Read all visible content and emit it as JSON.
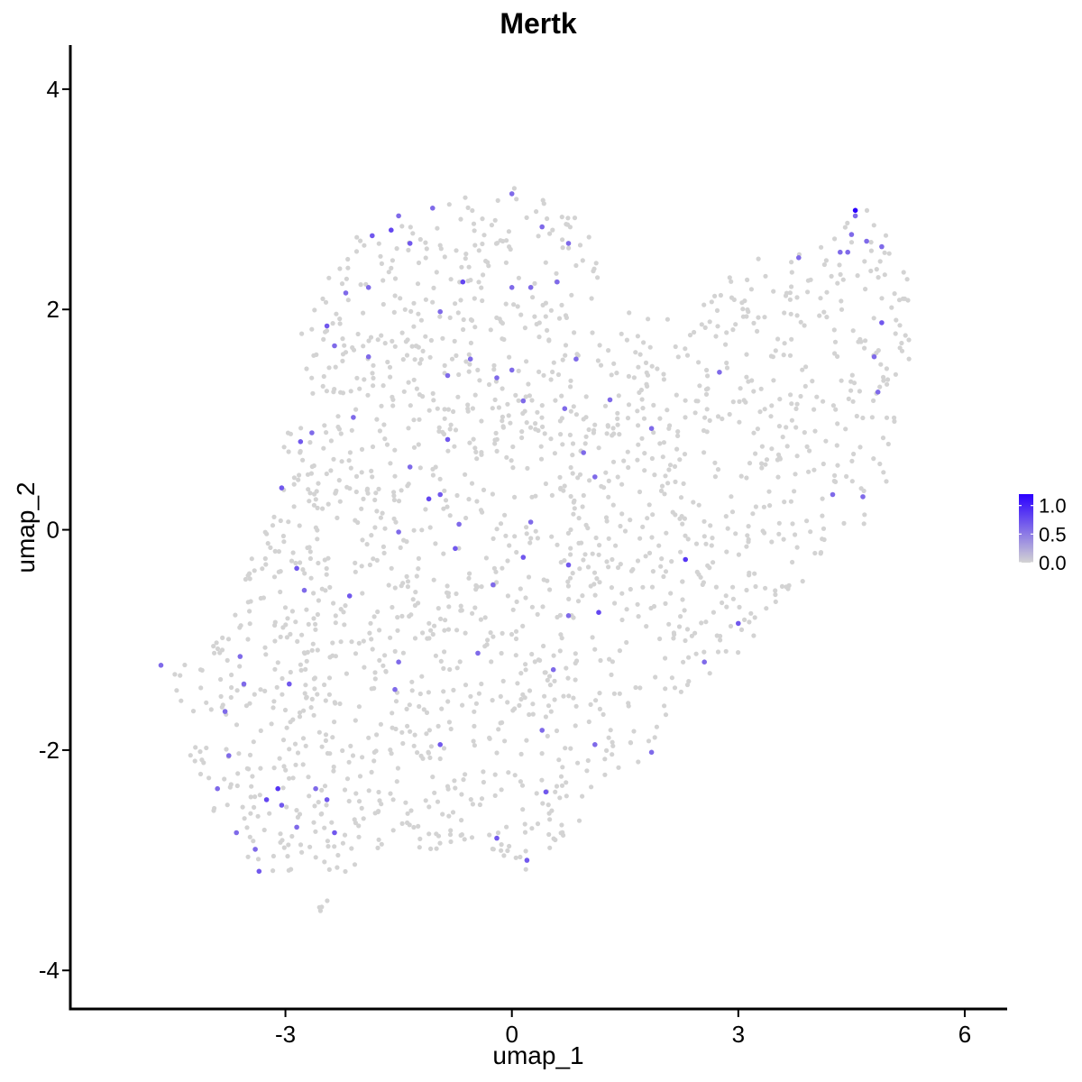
{
  "chart_data": {
    "type": "scatter",
    "title": "Mertk",
    "xlabel": "umap_1",
    "ylabel": "umap_2",
    "xlim": [
      -5.85,
      6.55
    ],
    "ylim": [
      -4.35,
      4.4
    ],
    "x_ticks": [
      -3,
      0,
      3,
      6
    ],
    "x_tick_labels": [
      "-3",
      "0",
      "3",
      "6"
    ],
    "y_ticks": [
      -4,
      -2,
      0,
      2,
      4
    ],
    "y_tick_labels": [
      "-4",
      "-2",
      "0",
      "2",
      "4"
    ],
    "grid": false,
    "legend": {
      "placement": "right",
      "type": "colorbar",
      "min": 0.0,
      "max": 1.2,
      "ticks": [
        0.0,
        0.5,
        1.0
      ],
      "tick_labels": [
        "0.0",
        "0.5",
        "1.0"
      ],
      "low_color": "#d3d3d3",
      "high_color": "#2b00ff"
    },
    "colors": {
      "low": "#d3d3d3",
      "high": "#2b00ff"
    },
    "expressed_points": [
      {
        "x": -4.65,
        "y": -1.23,
        "value": 0.6
      },
      {
        "x": -3.8,
        "y": -1.65,
        "value": 0.6
      },
      {
        "x": -3.6,
        "y": -1.15,
        "value": 0.6
      },
      {
        "x": -3.55,
        "y": -1.4,
        "value": 0.6
      },
      {
        "x": -3.75,
        "y": -2.05,
        "value": 0.6
      },
      {
        "x": -3.9,
        "y": -2.35,
        "value": 0.6
      },
      {
        "x": -3.65,
        "y": -2.75,
        "value": 0.6
      },
      {
        "x": -3.4,
        "y": -2.9,
        "value": 0.6
      },
      {
        "x": -3.35,
        "y": -3.1,
        "value": 0.7
      },
      {
        "x": -3.25,
        "y": -2.45,
        "value": 0.8
      },
      {
        "x": -3.1,
        "y": -2.35,
        "value": 0.9
      },
      {
        "x": -3.05,
        "y": -2.5,
        "value": 0.7
      },
      {
        "x": -2.85,
        "y": -2.7,
        "value": 0.6
      },
      {
        "x": -2.6,
        "y": -2.35,
        "value": 0.6
      },
      {
        "x": -2.45,
        "y": -2.45,
        "value": 0.7
      },
      {
        "x": -2.35,
        "y": -2.75,
        "value": 0.7
      },
      {
        "x": -2.95,
        "y": -1.4,
        "value": 0.7
      },
      {
        "x": -2.85,
        "y": -0.35,
        "value": 0.7
      },
      {
        "x": -2.75,
        "y": -0.55,
        "value": 0.6
      },
      {
        "x": -3.05,
        "y": 0.38,
        "value": 0.7
      },
      {
        "x": -2.8,
        "y": 0.8,
        "value": 0.7
      },
      {
        "x": -2.65,
        "y": 0.88,
        "value": 0.6
      },
      {
        "x": -2.15,
        "y": -0.6,
        "value": 0.7
      },
      {
        "x": -2.1,
        "y": 1.02,
        "value": 0.6
      },
      {
        "x": -2.45,
        "y": 1.85,
        "value": 0.7
      },
      {
        "x": -2.35,
        "y": 1.67,
        "value": 0.6
      },
      {
        "x": -2.2,
        "y": 2.15,
        "value": 0.6
      },
      {
        "x": -1.9,
        "y": 2.2,
        "value": 0.6
      },
      {
        "x": -1.85,
        "y": 2.67,
        "value": 0.7
      },
      {
        "x": -1.9,
        "y": 1.57,
        "value": 0.6
      },
      {
        "x": -1.6,
        "y": 2.72,
        "value": 0.8
      },
      {
        "x": -1.5,
        "y": 2.85,
        "value": 0.6
      },
      {
        "x": -1.35,
        "y": 2.6,
        "value": 0.7
      },
      {
        "x": -1.35,
        "y": 0.57,
        "value": 0.6
      },
      {
        "x": -1.5,
        "y": -0.02,
        "value": 0.6
      },
      {
        "x": -1.5,
        "y": -1.2,
        "value": 0.6
      },
      {
        "x": -1.55,
        "y": -1.45,
        "value": 0.6
      },
      {
        "x": -1.05,
        "y": 2.92,
        "value": 0.6
      },
      {
        "x": -0.95,
        "y": 1.98,
        "value": 0.6
      },
      {
        "x": -0.85,
        "y": 1.4,
        "value": 0.6
      },
      {
        "x": -0.65,
        "y": 2.25,
        "value": 0.8
      },
      {
        "x": -0.55,
        "y": 1.55,
        "value": 0.6
      },
      {
        "x": -0.85,
        "y": 0.82,
        "value": 0.7
      },
      {
        "x": -1.1,
        "y": 0.28,
        "value": 0.8
      },
      {
        "x": -0.95,
        "y": 0.32,
        "value": 0.7
      },
      {
        "x": -0.7,
        "y": 0.05,
        "value": 0.6
      },
      {
        "x": -0.75,
        "y": -0.17,
        "value": 0.7
      },
      {
        "x": -0.45,
        "y": -1.12,
        "value": 0.6
      },
      {
        "x": -0.95,
        "y": -1.95,
        "value": 0.7
      },
      {
        "x": -0.2,
        "y": 1.38,
        "value": 0.6
      },
      {
        "x": -0.25,
        "y": -0.5,
        "value": 0.6
      },
      {
        "x": -0.2,
        "y": -2.8,
        "value": 0.7
      },
      {
        "x": 0.0,
        "y": 3.05,
        "value": 0.6
      },
      {
        "x": 0.0,
        "y": 2.2,
        "value": 0.6
      },
      {
        "x": 0.0,
        "y": 1.45,
        "value": 0.6
      },
      {
        "x": 0.25,
        "y": 2.2,
        "value": 0.6
      },
      {
        "x": 0.15,
        "y": 1.17,
        "value": 0.6
      },
      {
        "x": 0.25,
        "y": 0.07,
        "value": 0.6
      },
      {
        "x": 0.15,
        "y": -0.25,
        "value": 0.7
      },
      {
        "x": 0.4,
        "y": 2.75,
        "value": 0.6
      },
      {
        "x": 0.6,
        "y": 2.25,
        "value": 0.6
      },
      {
        "x": 0.75,
        "y": 2.6,
        "value": 0.6
      },
      {
        "x": 0.85,
        "y": 1.55,
        "value": 0.6
      },
      {
        "x": 0.7,
        "y": 1.1,
        "value": 0.6
      },
      {
        "x": 0.95,
        "y": 0.7,
        "value": 0.6
      },
      {
        "x": 1.1,
        "y": 0.48,
        "value": 0.6
      },
      {
        "x": 1.3,
        "y": 1.18,
        "value": 0.6
      },
      {
        "x": 0.75,
        "y": -0.32,
        "value": 0.7
      },
      {
        "x": 0.75,
        "y": -0.78,
        "value": 0.6
      },
      {
        "x": 1.15,
        "y": -0.75,
        "value": 0.8
      },
      {
        "x": 0.55,
        "y": -1.27,
        "value": 0.6
      },
      {
        "x": 0.4,
        "y": -1.82,
        "value": 0.6
      },
      {
        "x": 1.1,
        "y": -1.95,
        "value": 0.6
      },
      {
        "x": 0.45,
        "y": -2.38,
        "value": 0.7
      },
      {
        "x": 0.2,
        "y": -3.0,
        "value": 0.7
      },
      {
        "x": 1.85,
        "y": 0.92,
        "value": 0.6
      },
      {
        "x": 2.3,
        "y": -0.27,
        "value": 0.9
      },
      {
        "x": 1.85,
        "y": -2.02,
        "value": 0.6
      },
      {
        "x": 2.55,
        "y": -1.2,
        "value": 0.6
      },
      {
        "x": 2.75,
        "y": 1.43,
        "value": 0.6
      },
      {
        "x": 3.0,
        "y": -0.85,
        "value": 0.7
      },
      {
        "x": 3.8,
        "y": 2.47,
        "value": 0.6
      },
      {
        "x": 4.25,
        "y": 0.32,
        "value": 0.6
      },
      {
        "x": 4.45,
        "y": 2.52,
        "value": 0.6
      },
      {
        "x": 4.35,
        "y": 2.52,
        "value": 0.6
      },
      {
        "x": 4.55,
        "y": 2.9,
        "value": 1.2
      },
      {
        "x": 4.5,
        "y": 2.68,
        "value": 0.6
      },
      {
        "x": 4.55,
        "y": 2.85,
        "value": 0.6
      },
      {
        "x": 4.7,
        "y": 2.62,
        "value": 0.6
      },
      {
        "x": 4.9,
        "y": 2.57,
        "value": 0.6
      },
      {
        "x": 4.9,
        "y": 1.88,
        "value": 0.7
      },
      {
        "x": 4.8,
        "y": 1.57,
        "value": 0.6
      },
      {
        "x": 4.85,
        "y": 1.25,
        "value": 0.6
      },
      {
        "x": 4.65,
        "y": 0.3,
        "value": 0.6
      }
    ]
  }
}
